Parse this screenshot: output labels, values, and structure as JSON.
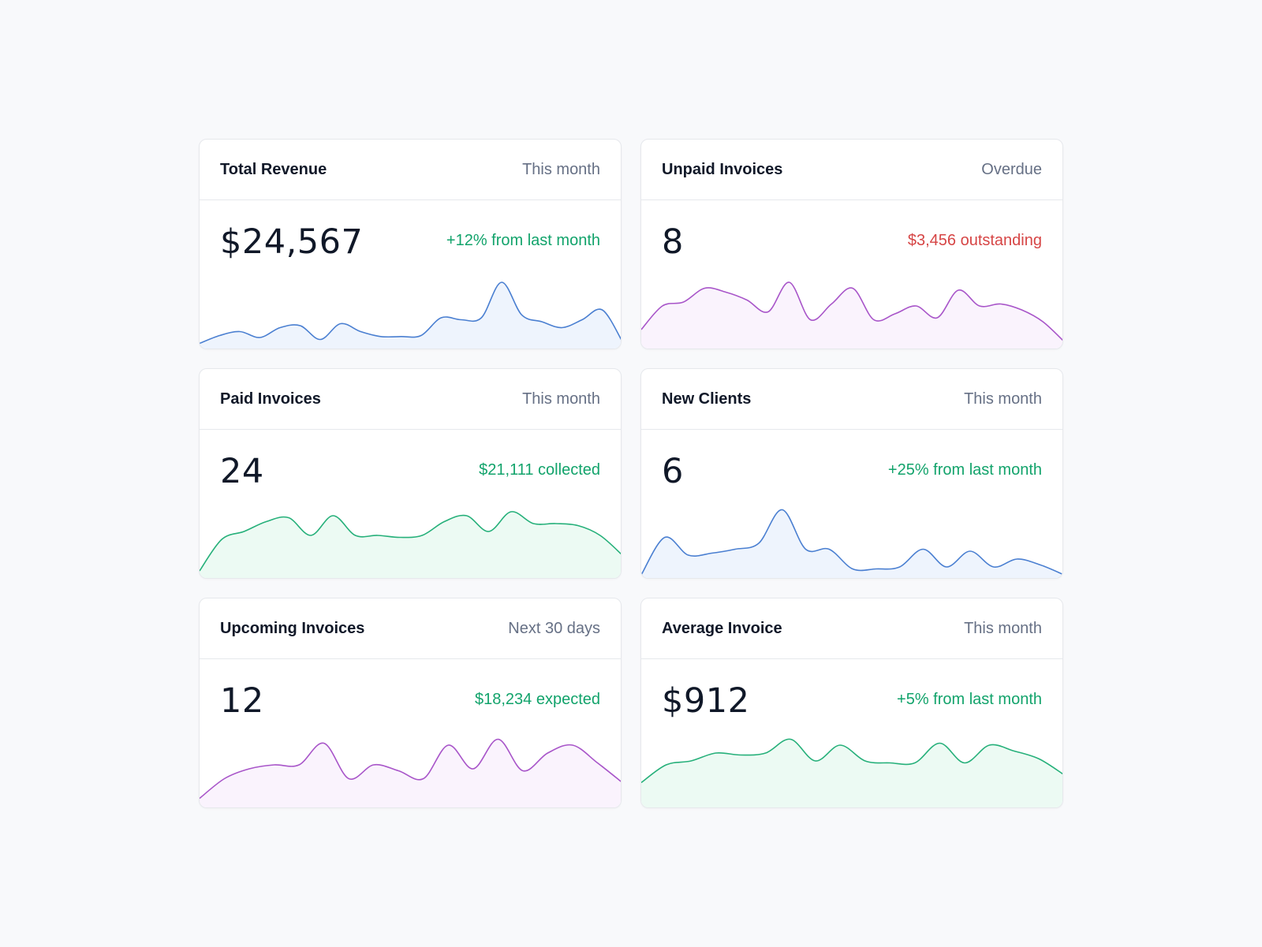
{
  "cards": [
    {
      "title": "Total Revenue",
      "period": "This month",
      "value": "$24,567",
      "note": "+12% from last month",
      "note_tone": "positive",
      "spark_color": "#4a7fd1",
      "spark_fill": "#eef4fd",
      "spark": [
        6,
        14,
        18,
        12,
        22,
        24,
        10,
        26,
        18,
        13,
        13,
        14,
        32,
        30,
        32,
        68,
        35,
        28,
        22,
        30,
        40,
        8
      ]
    },
    {
      "title": "Unpaid Invoices",
      "period": "Overdue",
      "value": "8",
      "note": "$3,456 outstanding",
      "note_tone": "negative",
      "spark_color": "#a855c9",
      "spark_fill": "#faf3fd",
      "spark": [
        20,
        44,
        48,
        62,
        58,
        50,
        38,
        68,
        30,
        46,
        62,
        30,
        36,
        44,
        32,
        60,
        44,
        46,
        40,
        28,
        8
      ]
    },
    {
      "title": "Paid Invoices",
      "period": "This month",
      "value": "24",
      "note": "$21,111 collected",
      "note_tone": "positive",
      "spark_color": "#26b07a",
      "spark_fill": "#ecfaf3",
      "spark": [
        8,
        40,
        48,
        58,
        62,
        44,
        64,
        44,
        44,
        42,
        44,
        58,
        64,
        48,
        68,
        56,
        56,
        54,
        44,
        24
      ]
    },
    {
      "title": "New Clients",
      "period": "This month",
      "value": "6",
      "note": "+25% from last month",
      "note_tone": "positive",
      "spark_color": "#4a7fd1",
      "spark_fill": "#eef4fd",
      "spark": [
        4,
        42,
        24,
        26,
        30,
        36,
        70,
        30,
        30,
        10,
        10,
        12,
        30,
        12,
        28,
        12,
        20,
        14,
        4
      ]
    },
    {
      "title": "Upcoming Invoices",
      "period": "Next 30 days",
      "value": "12",
      "note": "$18,234 expected",
      "note_tone": "positive",
      "spark_color": "#a855c9",
      "spark_fill": "#faf3fd",
      "spark": [
        10,
        30,
        40,
        44,
        44,
        66,
        30,
        44,
        38,
        30,
        64,
        40,
        70,
        38,
        56,
        64,
        46,
        26
      ]
    },
    {
      "title": "Average Invoice",
      "period": "This month",
      "value": "$912",
      "note": "+5% from last month",
      "note_tone": "positive",
      "spark_color": "#26b07a",
      "spark_fill": "#ecfaf3",
      "spark": [
        26,
        44,
        48,
        56,
        54,
        56,
        70,
        48,
        64,
        48,
        46,
        46,
        66,
        46,
        64,
        58,
        50,
        34
      ]
    }
  ]
}
